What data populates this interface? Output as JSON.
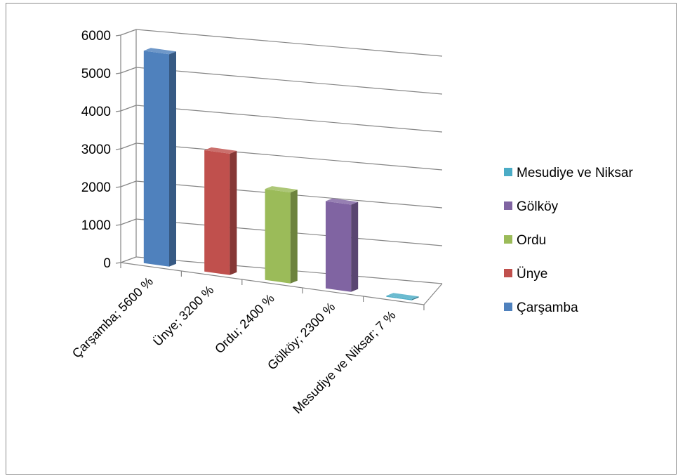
{
  "chart_data": {
    "type": "bar",
    "categories": [
      "Çarşamba; 5600 %",
      "Ünye; 3200 %",
      "Ordu; 2400 %",
      "Gölköy; 2300 %",
      "Mesudiye ve Niksar; 7 %"
    ],
    "series": [
      {
        "name": "Çarşamba",
        "color": "#4f81bd",
        "values": [
          5600,
          null,
          null,
          null,
          null
        ]
      },
      {
        "name": "Ünye",
        "color": "#c0504d",
        "values": [
          null,
          3200,
          null,
          null,
          null
        ]
      },
      {
        "name": "Ordu",
        "color": "#9bbb59",
        "values": [
          null,
          null,
          2400,
          null,
          null
        ]
      },
      {
        "name": "Gölköy",
        "color": "#8064a2",
        "values": [
          null,
          null,
          null,
          2300,
          null
        ]
      },
      {
        "name": "Mesudiye ve Niksar",
        "color": "#4bacc6",
        "values": [
          null,
          null,
          null,
          null,
          7
        ]
      }
    ],
    "y_ticks": [
      "0",
      "1000",
      "2000",
      "3000",
      "4000",
      "5000",
      "6000"
    ],
    "ylim": [
      0,
      6000
    ],
    "grid": true,
    "three_d": true,
    "legend": {
      "position": "right",
      "entries": [
        "Mesudiye ve Niksar",
        "Gölköy",
        "Ordu",
        "Ünye",
        "Çarşamba"
      ]
    },
    "title": "",
    "xlabel": "",
    "ylabel": ""
  }
}
